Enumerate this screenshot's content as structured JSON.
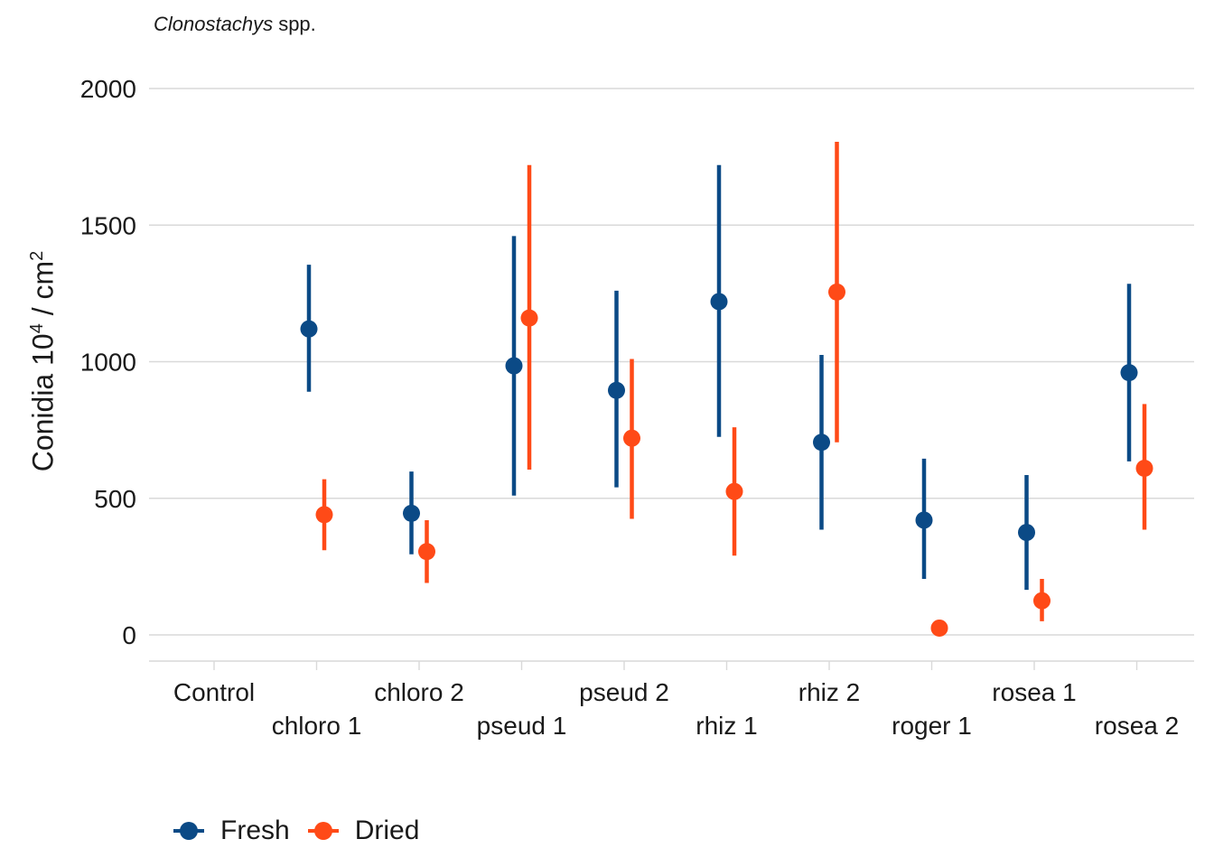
{
  "title": {
    "italic": "Clonostachys",
    "rest": " spp."
  },
  "y_axis_label": {
    "main": "Conidia 10",
    "sup1": "4",
    "mid": " / cm",
    "sup2": "2"
  },
  "legend": [
    {
      "label": "Fresh",
      "color": "#0b4a86"
    },
    {
      "label": "Dried",
      "color": "#ff4a17"
    }
  ],
  "chart_data": {
    "type": "scatter",
    "subtype": "pointrange",
    "categories": [
      "Control",
      "chloro 1",
      "chloro 2",
      "pseud 1",
      "pseud 2",
      "rhiz 1",
      "rhiz 2",
      "roger 1",
      "rosea 1",
      "rosea 2"
    ],
    "ylim": [
      -100,
      2100
    ],
    "yticks": [
      0,
      500,
      1000,
      1500,
      2000
    ],
    "grid": true,
    "legend_position": "bottom-left",
    "series": [
      {
        "name": "Fresh",
        "color": "#0b4a86",
        "points": [
          {
            "category": "chloro 1",
            "value": 1120,
            "low": 890,
            "high": 1355
          },
          {
            "category": "chloro 2",
            "value": 445,
            "low": 295,
            "high": 598
          },
          {
            "category": "pseud 1",
            "value": 985,
            "low": 510,
            "high": 1460
          },
          {
            "category": "pseud 2",
            "value": 895,
            "low": 540,
            "high": 1260
          },
          {
            "category": "rhiz 1",
            "value": 1220,
            "low": 725,
            "high": 1720
          },
          {
            "category": "rhiz 2",
            "value": 705,
            "low": 385,
            "high": 1025
          },
          {
            "category": "roger 1",
            "value": 420,
            "low": 205,
            "high": 645
          },
          {
            "category": "rosea 1",
            "value": 375,
            "low": 165,
            "high": 585
          },
          {
            "category": "rosea 2",
            "value": 960,
            "low": 635,
            "high": 1285
          }
        ]
      },
      {
        "name": "Dried",
        "color": "#ff4a17",
        "points": [
          {
            "category": "chloro 1",
            "value": 440,
            "low": 310,
            "high": 570
          },
          {
            "category": "chloro 2",
            "value": 305,
            "low": 190,
            "high": 420
          },
          {
            "category": "pseud 1",
            "value": 1160,
            "low": 605,
            "high": 1720
          },
          {
            "category": "pseud 2",
            "value": 720,
            "low": 425,
            "high": 1010
          },
          {
            "category": "rhiz 1",
            "value": 525,
            "low": 290,
            "high": 760
          },
          {
            "category": "rhiz 2",
            "value": 1255,
            "low": 705,
            "high": 1805
          },
          {
            "category": "roger 1",
            "value": 25,
            "low": 25,
            "high": 25
          },
          {
            "category": "rosea 1",
            "value": 125,
            "low": 50,
            "high": 205
          },
          {
            "category": "rosea 2",
            "value": 610,
            "low": 385,
            "high": 845
          }
        ]
      }
    ]
  }
}
